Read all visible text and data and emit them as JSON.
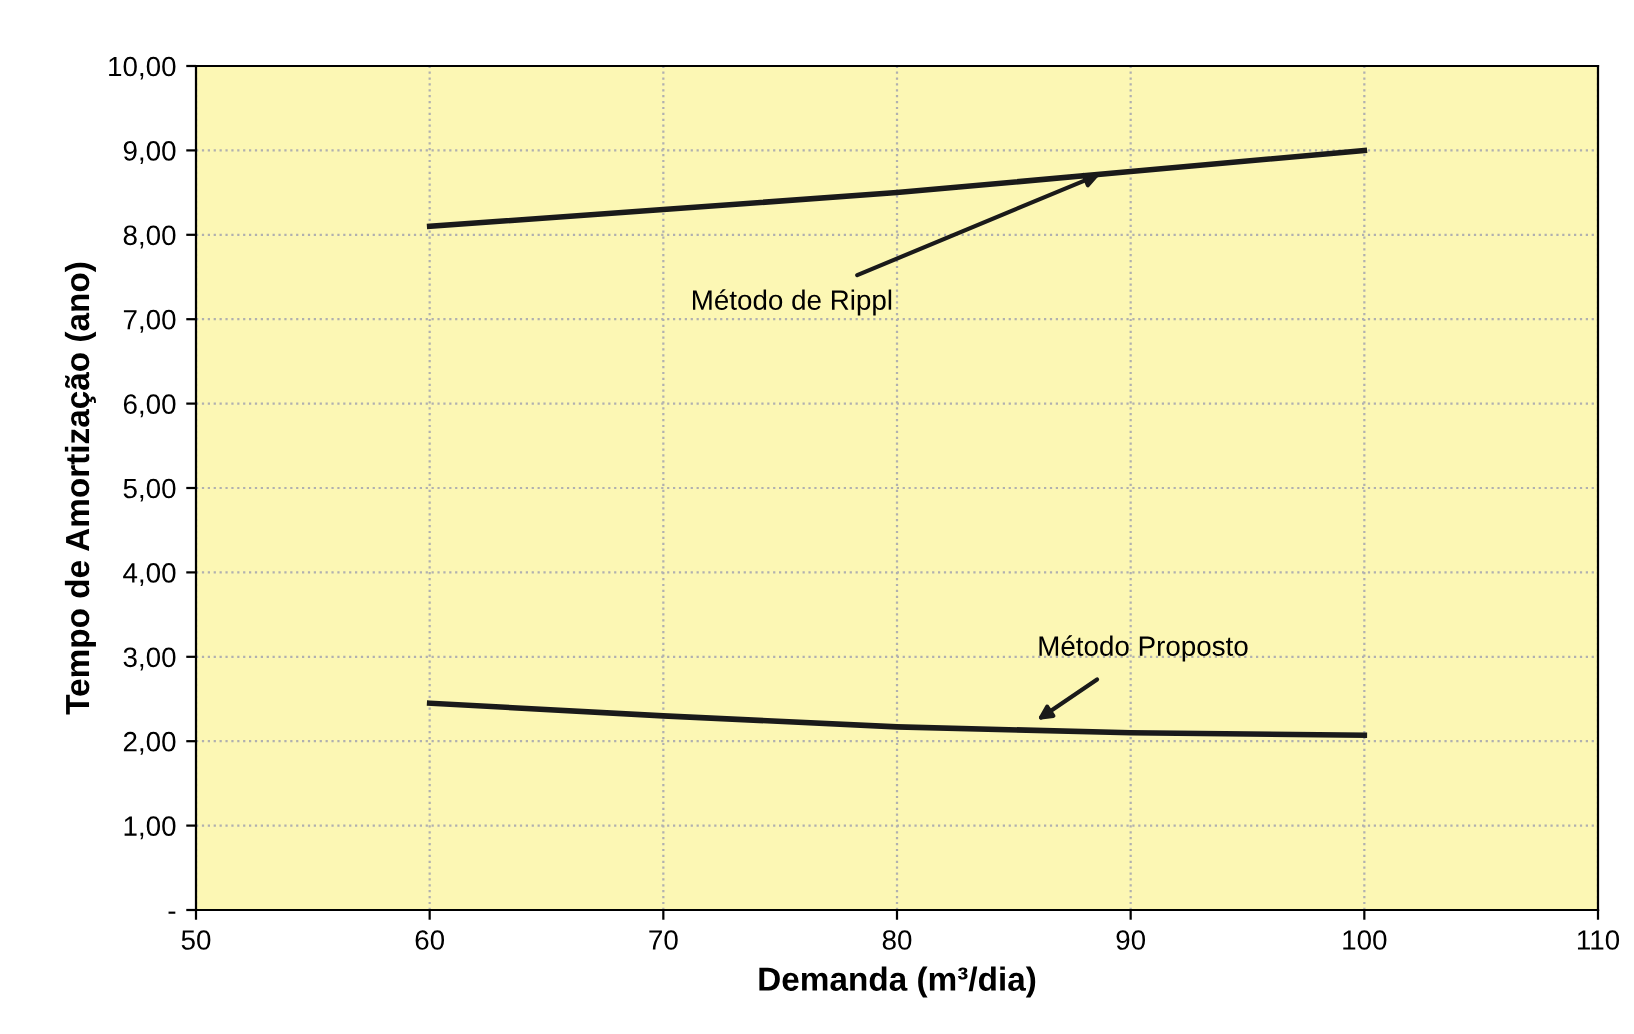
{
  "chart_data": {
    "type": "line",
    "xlabel": "Demanda (m³/dia)",
    "ylabel": "Tempo de Amortização (ano)",
    "x": [
      60,
      70,
      80,
      90,
      100
    ],
    "series": [
      {
        "color": "#1a1a1a",
        "values": [
          8.1,
          8.3,
          8.5,
          8.75,
          9.0
        ]
      },
      {
        "color": "#1a1a1a",
        "values": [
          2.45,
          2.3,
          2.17,
          2.1,
          2.07
        ]
      }
    ],
    "xlim": [
      50,
      110
    ],
    "xticks": [
      50,
      60,
      70,
      80,
      90,
      100,
      110
    ],
    "ylim": [
      0,
      10
    ],
    "yticks": [
      {
        "value": 0,
        "label": "-"
      },
      {
        "value": 1,
        "label": "1,00"
      },
      {
        "value": 2,
        "label": "2,00"
      },
      {
        "value": 3,
        "label": "3,00"
      },
      {
        "value": 4,
        "label": "4,00"
      },
      {
        "value": 5,
        "label": "5,00"
      },
      {
        "value": 6,
        "label": "6,00"
      },
      {
        "value": 7,
        "label": "7,00"
      },
      {
        "value": 8,
        "label": "8,00"
      },
      {
        "value": 9,
        "label": "9,00"
      },
      {
        "value": 10,
        "label": "10,00"
      }
    ],
    "grid": true,
    "marker": "none",
    "line_style": "solid",
    "legend": false,
    "annotations": [
      {
        "text": "Método de Rippl",
        "x": 88.7,
        "y": 8.72
      },
      {
        "text": "Método Proposto",
        "x": 86,
        "y": 2.25
      }
    ]
  }
}
